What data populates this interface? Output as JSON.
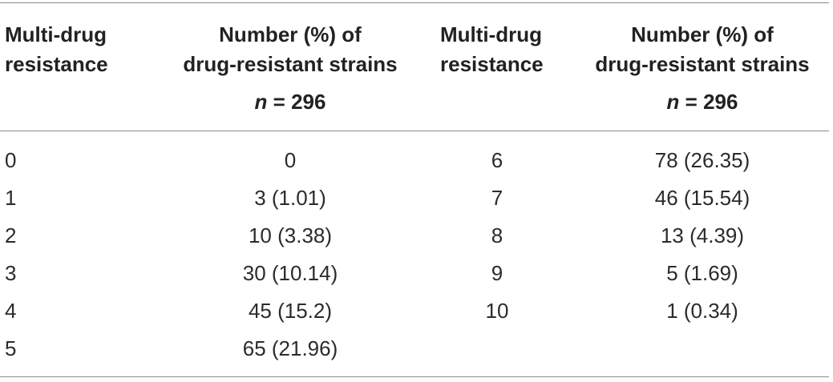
{
  "headers": {
    "col1": [
      "Multi-drug",
      "resistance"
    ],
    "col2": [
      "Number (%) of",
      "drug-resistant strains"
    ],
    "col3": [
      "Multi-drug",
      "resistance"
    ],
    "col4": [
      "Number (%) of",
      "drug-resistant strains"
    ],
    "n_var": "n",
    "n_value": " = 296"
  },
  "rows": [
    {
      "mdr_left": "0",
      "count_left": "0",
      "mdr_right": "6",
      "count_right": "78 (26.35)"
    },
    {
      "mdr_left": "1",
      "count_left": "3 (1.01)",
      "mdr_right": "7",
      "count_right": "46 (15.54)"
    },
    {
      "mdr_left": "2",
      "count_left": "10 (3.38)",
      "mdr_right": "8",
      "count_right": "13 (4.39)"
    },
    {
      "mdr_left": "3",
      "count_left": "30 (10.14)",
      "mdr_right": "9",
      "count_right": "5 (1.69)"
    },
    {
      "mdr_left": "4",
      "count_left": "45 (15.2)",
      "mdr_right": "10",
      "count_right": "1 (0.34)"
    },
    {
      "mdr_left": "5",
      "count_left": "65 (21.96)",
      "mdr_right": "",
      "count_right": ""
    }
  ]
}
